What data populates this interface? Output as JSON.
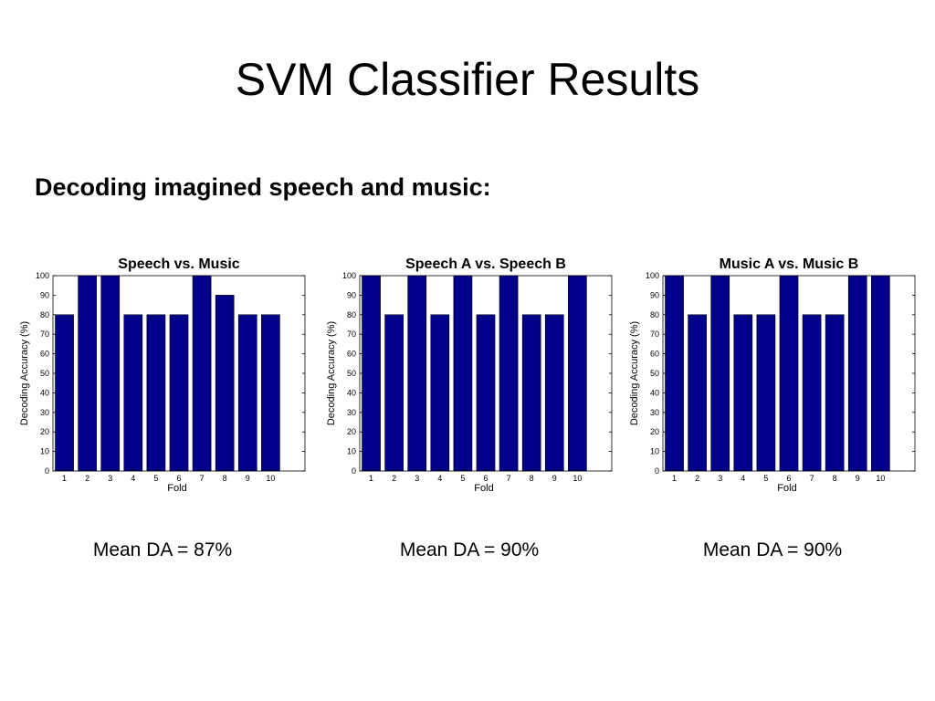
{
  "slide": {
    "title": "SVM Classifier Results",
    "subtitle": "Decoding imagined speech and music:"
  },
  "bar_color": "#00008B",
  "chart_data": [
    {
      "type": "bar",
      "title": "Speech vs. Music",
      "xlabel": "Fold",
      "ylabel": "Decoding Accuracy (%)",
      "categories": [
        "1",
        "2",
        "3",
        "4",
        "5",
        "6",
        "7",
        "8",
        "9",
        "10"
      ],
      "values": [
        80,
        100,
        100,
        80,
        80,
        80,
        100,
        90,
        80,
        80
      ],
      "ylim": [
        0,
        100
      ],
      "yticks": [
        0,
        10,
        20,
        30,
        40,
        50,
        60,
        70,
        80,
        90,
        100
      ],
      "xlim": [
        0.5,
        11.5
      ],
      "grid": false,
      "mean_label": "Mean DA = 87%"
    },
    {
      "type": "bar",
      "title": "Speech A vs. Speech B",
      "xlabel": "Fold",
      "ylabel": "Decoding Accuracy (%)",
      "categories": [
        "1",
        "2",
        "3",
        "4",
        "5",
        "6",
        "7",
        "8",
        "9",
        "10"
      ],
      "values": [
        100,
        80,
        100,
        80,
        100,
        80,
        100,
        80,
        80,
        100
      ],
      "ylim": [
        0,
        100
      ],
      "yticks": [
        0,
        10,
        20,
        30,
        40,
        50,
        60,
        70,
        80,
        90,
        100
      ],
      "xlim": [
        0.5,
        11.5
      ],
      "grid": false,
      "mean_label": "Mean DA = 90%"
    },
    {
      "type": "bar",
      "title": "Music A vs. Music B",
      "xlabel": "Fold",
      "ylabel": "Decoding Accuracy (%)",
      "categories": [
        "1",
        "2",
        "3",
        "4",
        "5",
        "6",
        "7",
        "8",
        "9",
        "10"
      ],
      "values": [
        100,
        80,
        100,
        80,
        80,
        100,
        80,
        80,
        100,
        100
      ],
      "ylim": [
        0,
        100
      ],
      "yticks": [
        0,
        10,
        20,
        30,
        40,
        50,
        60,
        70,
        80,
        90,
        100
      ],
      "xlim": [
        0.5,
        11.5
      ],
      "grid": false,
      "mean_label": "Mean DA = 90%"
    }
  ]
}
